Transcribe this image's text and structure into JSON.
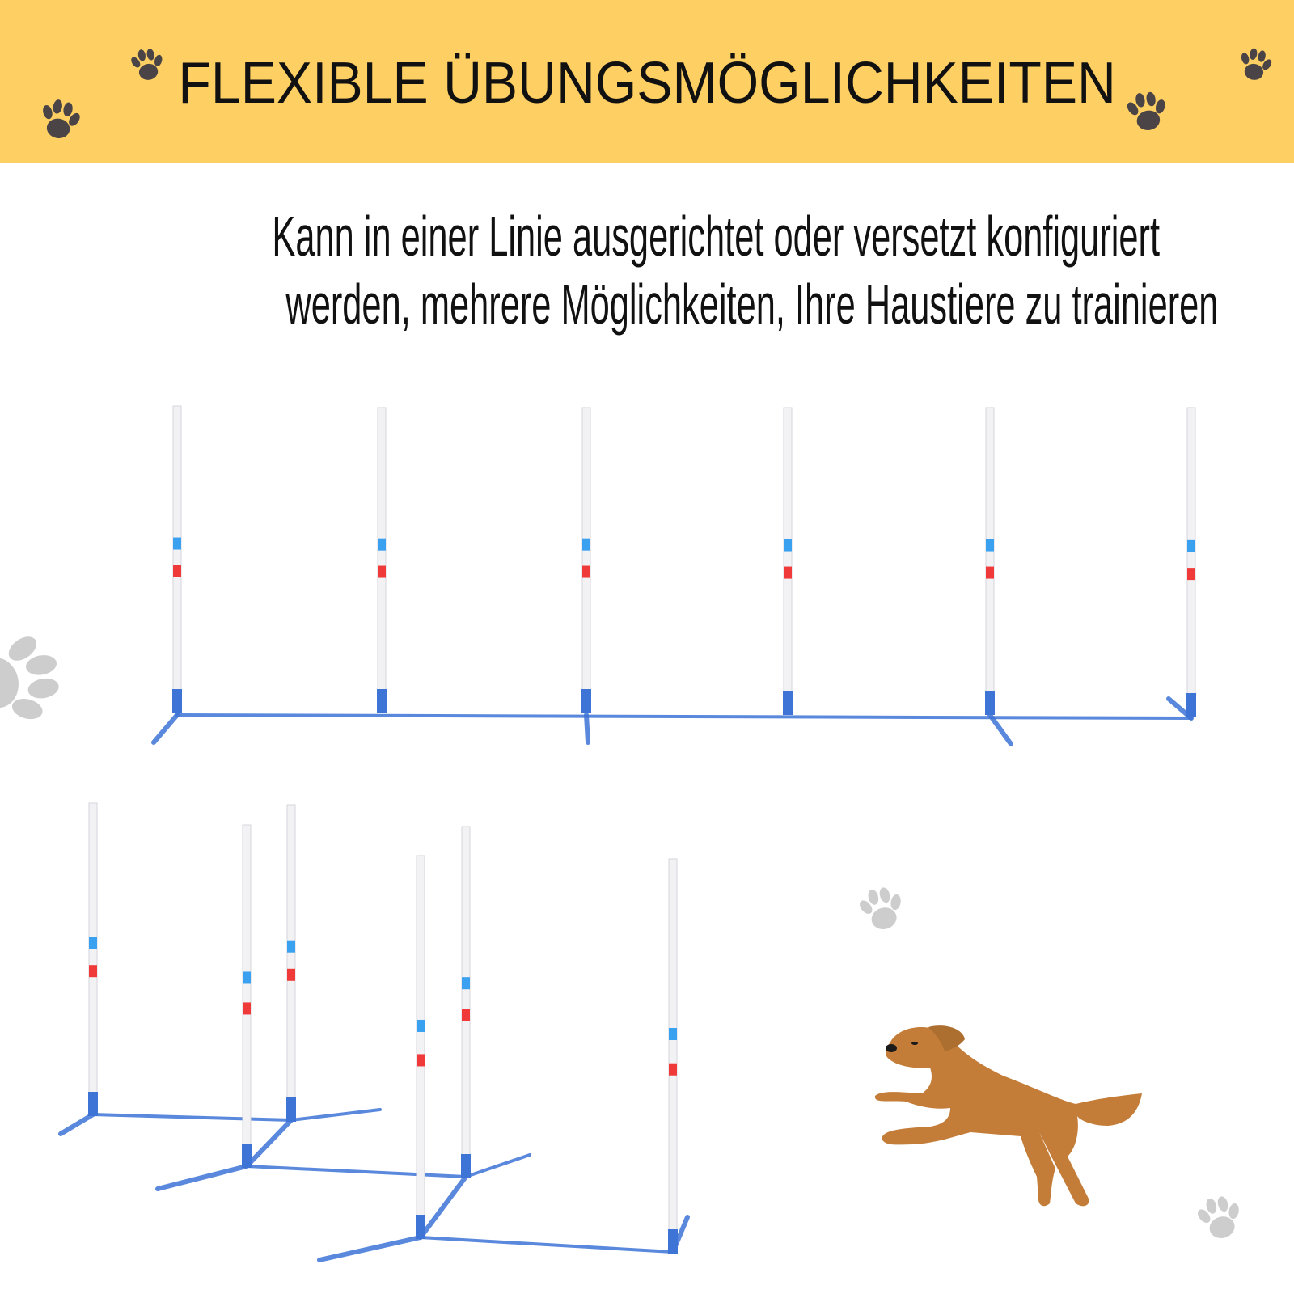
{
  "header": {
    "title": "FLEXIBLE ÜBUNGSMÖGLICHKEITEN",
    "background_color": "#fecf62"
  },
  "description": {
    "line1": "Kann in einer Linie ausgerichtet oder versetzt konfiguriert",
    "line2": "werden, mehrere Möglichkeiten, Ihre Haustiere zu trainieren"
  },
  "product": {
    "pole_color": "#f2f2f4",
    "base_color": "#3d74d6",
    "band_colors": [
      "#3aa0f0",
      "#f03a3a"
    ],
    "top_configuration": "in-line",
    "bottom_configuration": "staggered"
  },
  "decorations": {
    "icons": [
      "paw-icon",
      "dog-illustration"
    ],
    "dog_color": "#c47d38",
    "paw_dark": "#4a4446",
    "paw_light": "#c8c8c8"
  }
}
